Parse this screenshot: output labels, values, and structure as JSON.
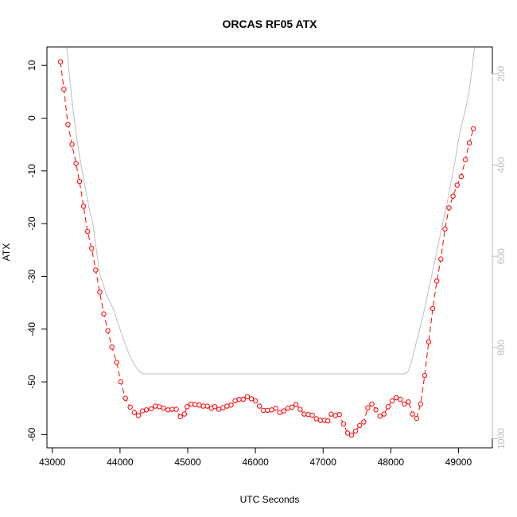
{
  "chart_data": {
    "type": "line",
    "title": "ORCAS RF05 ATX",
    "xlabel": "UTC Seconds",
    "ylabel": "ATX",
    "xlim": [
      42920,
      49500
    ],
    "ylim": [
      -62.5,
      13.5
    ],
    "x_ticks": [
      "43000",
      "44000",
      "45000",
      "46000",
      "47000",
      "48000",
      "49000"
    ],
    "y_ticks": [
      "10",
      "0",
      "-10",
      "-20",
      "-30",
      "-40",
      "-50",
      "-60"
    ],
    "y2_ticks": [
      "200",
      "400",
      "600",
      "800",
      "1000"
    ],
    "y2lim": [
      1020,
      141
    ],
    "series": [
      {
        "color": "#ff0000",
        "style": "points-and-dashed-line",
        "points": [
          [
            43120,
            10.7
          ],
          [
            43170,
            5.5
          ],
          [
            43230,
            -1.2
          ],
          [
            43290,
            -5.0
          ],
          [
            43350,
            -8.6
          ],
          [
            43400,
            -12.0
          ],
          [
            43460,
            -16.7
          ],
          [
            43520,
            -21.5
          ],
          [
            43580,
            -24.7
          ],
          [
            43640,
            -28.8
          ],
          [
            43700,
            -33.0
          ],
          [
            43760,
            -37.1
          ],
          [
            43820,
            -40.3
          ],
          [
            43880,
            -43.4
          ],
          [
            43950,
            -46.3
          ],
          [
            44010,
            -50.0
          ],
          [
            44080,
            -53.1
          ],
          [
            44150,
            -54.8
          ],
          [
            44210,
            -55.8
          ],
          [
            44270,
            -56.4
          ],
          [
            44330,
            -55.5
          ],
          [
            44390,
            -55.3
          ],
          [
            44460,
            -55.1
          ],
          [
            44520,
            -54.6
          ],
          [
            44580,
            -54.7
          ],
          [
            44640,
            -55.0
          ],
          [
            44710,
            -55.3
          ],
          [
            44770,
            -55.2
          ],
          [
            44830,
            -55.2
          ],
          [
            44890,
            -56.6
          ],
          [
            44950,
            -56.1
          ],
          [
            44990,
            -54.7
          ],
          [
            45050,
            -54.2
          ],
          [
            45110,
            -54.3
          ],
          [
            45170,
            -54.4
          ],
          [
            45230,
            -54.6
          ],
          [
            45290,
            -54.6
          ],
          [
            45350,
            -55.0
          ],
          [
            45400,
            -54.7
          ],
          [
            45460,
            -55.2
          ],
          [
            45520,
            -54.9
          ],
          [
            45580,
            -54.6
          ],
          [
            45640,
            -54.4
          ],
          [
            45700,
            -53.6
          ],
          [
            45760,
            -53.3
          ],
          [
            45820,
            -53.3
          ],
          [
            45880,
            -52.8
          ],
          [
            45940,
            -53.2
          ],
          [
            46000,
            -53.6
          ],
          [
            46060,
            -54.6
          ],
          [
            46120,
            -55.4
          ],
          [
            46180,
            -55.4
          ],
          [
            46240,
            -55.3
          ],
          [
            46300,
            -55.0
          ],
          [
            46360,
            -55.8
          ],
          [
            46420,
            -55.5
          ],
          [
            46480,
            -55.0
          ],
          [
            46540,
            -54.8
          ],
          [
            46600,
            -54.3
          ],
          [
            46660,
            -55.2
          ],
          [
            46720,
            -56.1
          ],
          [
            46780,
            -56.2
          ],
          [
            46840,
            -56.3
          ],
          [
            46900,
            -57.0
          ],
          [
            46960,
            -57.3
          ],
          [
            47020,
            -57.3
          ],
          [
            47070,
            -57.4
          ],
          [
            47120,
            -56.1
          ],
          [
            47180,
            -56.4
          ],
          [
            47240,
            -56.2
          ],
          [
            47300,
            -58.0
          ],
          [
            47360,
            -59.7
          ],
          [
            47420,
            -60.1
          ],
          [
            47480,
            -59.3
          ],
          [
            47540,
            -58.3
          ],
          [
            47600,
            -57.6
          ],
          [
            47660,
            -54.9
          ],
          [
            47720,
            -54.2
          ],
          [
            47780,
            -55.3
          ],
          [
            47840,
            -56.5
          ],
          [
            47900,
            -56.1
          ],
          [
            47960,
            -54.7
          ],
          [
            48020,
            -53.6
          ],
          [
            48080,
            -53.0
          ],
          [
            48140,
            -53.3
          ],
          [
            48200,
            -54.2
          ],
          [
            48260,
            -53.8
          ],
          [
            48320,
            -56.1
          ],
          [
            48380,
            -56.9
          ],
          [
            48440,
            -54.2
          ],
          [
            48500,
            -48.8
          ],
          [
            48560,
            -42.4
          ],
          [
            48620,
            -36.1
          ],
          [
            48680,
            -30.9
          ],
          [
            48740,
            -26.7
          ],
          [
            48800,
            -21.0
          ],
          [
            48860,
            -17.0
          ],
          [
            48920,
            -14.8
          ],
          [
            48980,
            -12.7
          ],
          [
            49040,
            -11.1
          ],
          [
            49100,
            -7.9
          ],
          [
            49160,
            -4.7
          ],
          [
            49220,
            -2.0
          ]
        ]
      },
      {
        "axis": "right",
        "color": "#bebebe",
        "style": "line",
        "points": [
          [
            43200,
            125
          ],
          [
            43250,
            200
          ],
          [
            43300,
            270
          ],
          [
            43350,
            330
          ],
          [
            43400,
            380
          ],
          [
            43450,
            420
          ],
          [
            43500,
            460
          ],
          [
            43550,
            500
          ],
          [
            43600,
            530
          ],
          [
            43650,
            585
          ],
          [
            43700,
            640
          ],
          [
            43750,
            660
          ],
          [
            43800,
            685
          ],
          [
            43850,
            700
          ],
          [
            43900,
            715
          ],
          [
            43950,
            738
          ],
          [
            44000,
            760
          ],
          [
            44050,
            782
          ],
          [
            44100,
            802
          ],
          [
            44150,
            820
          ],
          [
            44200,
            835
          ],
          [
            44250,
            846
          ],
          [
            44300,
            854
          ],
          [
            44340,
            858
          ],
          [
            45000,
            858
          ],
          [
            46000,
            858
          ],
          [
            47000,
            858
          ],
          [
            48000,
            858
          ],
          [
            48200,
            858
          ],
          [
            48250,
            854
          ],
          [
            48300,
            835
          ],
          [
            48350,
            805
          ],
          [
            48400,
            775
          ],
          [
            48450,
            745
          ],
          [
            48500,
            715
          ],
          [
            48550,
            680
          ],
          [
            48600,
            645
          ],
          [
            48650,
            610
          ],
          [
            48700,
            575
          ],
          [
            48750,
            540
          ],
          [
            48800,
            505
          ],
          [
            48850,
            470
          ],
          [
            48900,
            430
          ],
          [
            48950,
            390
          ],
          [
            49000,
            345
          ],
          [
            49050,
            310
          ],
          [
            49100,
            280
          ],
          [
            49150,
            245
          ],
          [
            49200,
            190
          ],
          [
            49250,
            125
          ]
        ]
      }
    ]
  }
}
